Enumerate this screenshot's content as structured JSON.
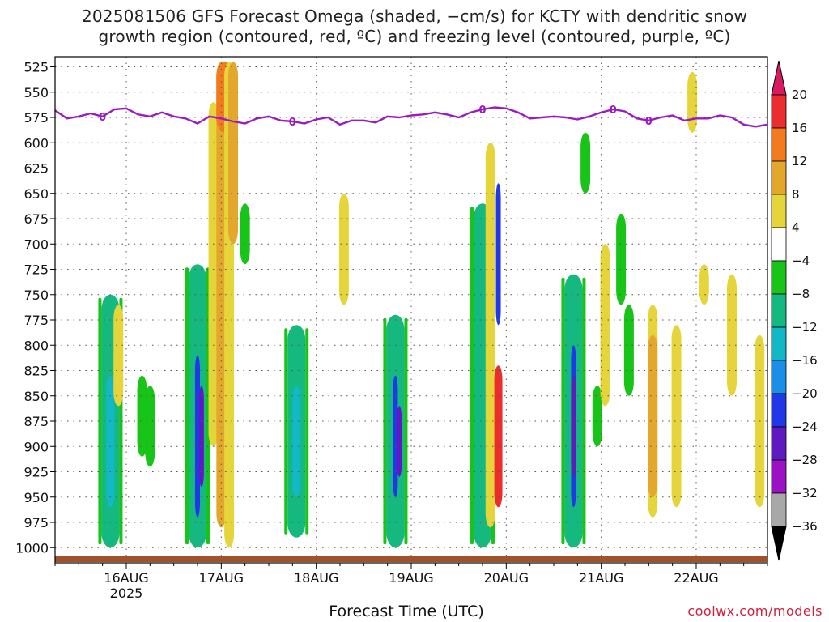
{
  "title": {
    "line1": "2025081506 GFS Forecast Omega (shaded, −cm/s) for KCTY with dendritic snow",
    "line2": "growth region (contoured, red, ºC) and freezing level (contoured, purple, ºC)"
  },
  "credit": "coolwx.com/models",
  "chart_data": {
    "type": "heatmap",
    "xlabel": "Forecast Time (UTC)",
    "ylabel": "",
    "x_ticks": [
      "16AUG",
      "17AUG",
      "18AUG",
      "19AUG",
      "20AUG",
      "21AUG",
      "22AUG"
    ],
    "x_year_label": "2025",
    "y_ticks": [
      525,
      550,
      575,
      600,
      625,
      650,
      675,
      700,
      725,
      750,
      775,
      800,
      825,
      850,
      875,
      900,
      925,
      950,
      975,
      1000
    ],
    "y_range_hPa": [
      515,
      1015
    ],
    "x_range_hours_from_start": [
      0,
      180
    ],
    "grid": "dotted",
    "colorbar": {
      "labels": [
        "20",
        "16",
        "12",
        "8",
        "4",
        "−4",
        "−8",
        "−12",
        "−16",
        "−20",
        "−24",
        "−28",
        "−32",
        "−36"
      ],
      "colors": [
        "#d81b60",
        "#ec2d2d",
        "#f47a20",
        "#e3a72c",
        "#e6d53a",
        "#ffffff",
        "#19c419",
        "#15b980",
        "#12b8c6",
        "#1b8ee8",
        "#2038e8",
        "#5f19c0",
        "#9a12c4",
        "#a8a8a8",
        "#000000"
      ]
    },
    "freezing_level": {
      "label": "0",
      "color": "#9b1bc2",
      "hours": [
        0,
        3,
        6,
        9,
        12,
        15,
        18,
        21,
        24,
        27,
        30,
        33,
        36,
        39,
        42,
        45,
        48,
        51,
        54,
        57,
        60,
        63,
        66,
        69,
        72,
        75,
        78,
        81,
        84,
        87,
        90,
        93,
        96,
        99,
        102,
        105,
        108,
        111,
        114,
        117,
        120,
        123,
        126,
        129,
        132,
        135,
        138,
        141,
        144,
        147,
        150,
        153,
        156,
        159,
        162,
        165,
        168,
        171,
        174,
        177,
        180
      ],
      "pressure_hPa": [
        568,
        576,
        574,
        571,
        574,
        567,
        566,
        572,
        574,
        570,
        574,
        576,
        581,
        574,
        576,
        579,
        581,
        576,
        574,
        578,
        579,
        581,
        577,
        575,
        582,
        578,
        578,
        580,
        574,
        575,
        573,
        572,
        570,
        572,
        575,
        570,
        567,
        565,
        566,
        570,
        576,
        575,
        574,
        575,
        577,
        574,
        570,
        567,
        569,
        576,
        578,
        575,
        573,
        578,
        576,
        576,
        573,
        575,
        582,
        584,
        582
      ]
    },
    "omega_cells": [
      {
        "t": 14,
        "p0": 750,
        "p1": 1000,
        "v": -12
      },
      {
        "t": 14,
        "p0": 830,
        "p1": 960,
        "v": -16
      },
      {
        "t": 16,
        "p0": 760,
        "p1": 860,
        "v": 4
      },
      {
        "t": 22,
        "p0": 830,
        "p1": 910,
        "v": -8
      },
      {
        "t": 24,
        "p0": 840,
        "p1": 920,
        "v": -8
      },
      {
        "t": 36,
        "p0": 720,
        "p1": 1000,
        "v": -12
      },
      {
        "t": 36,
        "p0": 810,
        "p1": 970,
        "v": -24
      },
      {
        "t": 37,
        "p0": 840,
        "p1": 940,
        "v": -28
      },
      {
        "t": 40,
        "p0": 560,
        "p1": 900,
        "v": 4
      },
      {
        "t": 42,
        "p0": 520,
        "p1": 980,
        "v": 8
      },
      {
        "t": 43,
        "p0": 520,
        "p1": 590,
        "v": 12
      },
      {
        "t": 44,
        "p0": 520,
        "p1": 1000,
        "v": 4
      },
      {
        "t": 45,
        "p0": 520,
        "p1": 700,
        "v": 8
      },
      {
        "t": 48,
        "p0": 660,
        "p1": 720,
        "v": -8
      },
      {
        "t": 61,
        "p0": 780,
        "p1": 990,
        "v": -12
      },
      {
        "t": 61,
        "p0": 840,
        "p1": 950,
        "v": -16
      },
      {
        "t": 73,
        "p0": 650,
        "p1": 760,
        "v": 4
      },
      {
        "t": 86,
        "p0": 770,
        "p1": 1000,
        "v": -12
      },
      {
        "t": 86,
        "p0": 830,
        "p1": 950,
        "v": -24
      },
      {
        "t": 87,
        "p0": 860,
        "p1": 930,
        "v": -28
      },
      {
        "t": 108,
        "p0": 660,
        "p1": 1000,
        "v": -12
      },
      {
        "t": 110,
        "p0": 600,
        "p1": 980,
        "v": 4
      },
      {
        "t": 112,
        "p0": 640,
        "p1": 780,
        "v": -24
      },
      {
        "t": 112,
        "p0": 820,
        "p1": 960,
        "v": 16
      },
      {
        "t": 131,
        "p0": 730,
        "p1": 1000,
        "v": -12
      },
      {
        "t": 131,
        "p0": 800,
        "p1": 960,
        "v": -24
      },
      {
        "t": 131,
        "p0": 830,
        "p1": 930,
        "v": -28
      },
      {
        "t": 134,
        "p0": 590,
        "p1": 650,
        "v": -8
      },
      {
        "t": 137,
        "p0": 840,
        "p1": 900,
        "v": -8
      },
      {
        "t": 139,
        "p0": 700,
        "p1": 860,
        "v": 4
      },
      {
        "t": 143,
        "p0": 670,
        "p1": 760,
        "v": -8
      },
      {
        "t": 145,
        "p0": 760,
        "p1": 850,
        "v": -8
      },
      {
        "t": 151,
        "p0": 760,
        "p1": 970,
        "v": 4
      },
      {
        "t": 151,
        "p0": 790,
        "p1": 950,
        "v": 8
      },
      {
        "t": 157,
        "p0": 780,
        "p1": 960,
        "v": 4
      },
      {
        "t": 161,
        "p0": 530,
        "p1": 590,
        "v": 4
      },
      {
        "t": 164,
        "p0": 720,
        "p1": 760,
        "v": 4
      },
      {
        "t": 171,
        "p0": 730,
        "p1": 850,
        "v": 4
      },
      {
        "t": 178,
        "p0": 790,
        "p1": 960,
        "v": 4
      }
    ]
  }
}
